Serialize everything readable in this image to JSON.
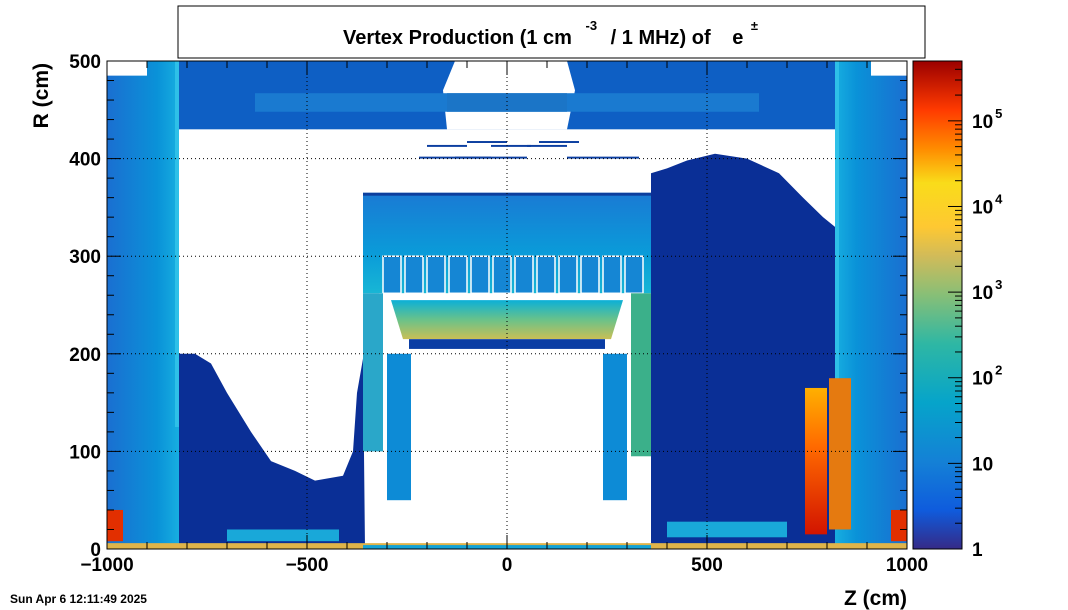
{
  "chart_data": {
    "type": "heatmap",
    "title": {
      "main": "Vertex Production (1 cm",
      "exponent": "-3",
      "rest": "/ 1 MHz) of",
      "particle": "e",
      "particle_sup": "±"
    },
    "xlabel": "Z (cm)",
    "ylabel": "R (cm)",
    "xlim": [
      -1000,
      1000
    ],
    "ylim": [
      0,
      500
    ],
    "x_ticks": [
      "−1000",
      "−500",
      "0",
      "500",
      "1000"
    ],
    "x_tick_values": [
      -1000,
      -500,
      0,
      500,
      1000
    ],
    "y_ticks": [
      "0",
      "100",
      "200",
      "300",
      "400",
      "500"
    ],
    "y_tick_values": [
      0,
      100,
      200,
      300,
      400,
      500
    ],
    "grid": true,
    "z_scale": "log",
    "zlim": [
      1,
      500000
    ],
    "colorbar_labels": [
      {
        "base": "1",
        "exp": "",
        "value": 1
      },
      {
        "base": "10",
        "exp": "",
        "value": 10
      },
      {
        "base": "10",
        "exp": "2",
        "value": 100
      },
      {
        "base": "10",
        "exp": "3",
        "value": 1000
      },
      {
        "base": "10",
        "exp": "4",
        "value": 10000
      },
      {
        "base": "10",
        "exp": "5",
        "value": 100000
      }
    ],
    "colormap": "kBird",
    "regions": [
      {
        "name": "forward-shield-left",
        "z": [
          -1000,
          -820
        ],
        "r": [
          0,
          500
        ],
        "level": 2.1
      },
      {
        "name": "forward-shield-right",
        "z": [
          820,
          1000
        ],
        "r": [
          0,
          500
        ],
        "level": 2.1
      },
      {
        "name": "outer-top-band",
        "z": [
          -820,
          820
        ],
        "r": [
          430,
          500
        ],
        "level": 1.3
      },
      {
        "name": "cavern-left",
        "z": [
          -820,
          -360
        ],
        "r": [
          0,
          200
        ],
        "level": 0.6
      },
      {
        "name": "cavern-right",
        "z": [
          360,
          820
        ],
        "r": [
          0,
          400
        ],
        "level": 0.3
      },
      {
        "name": "calorimeter-barrel",
        "z": [
          -370,
          370
        ],
        "r": [
          260,
          365
        ],
        "level": 1.8
      },
      {
        "name": "barrel-core",
        "z": [
          -240,
          240
        ],
        "r": [
          50,
          250
        ],
        "level": 0
      },
      {
        "name": "endcap-hot-right",
        "z": [
          740,
          800
        ],
        "r": [
          15,
          165
        ],
        "level": 5.0
      },
      {
        "name": "beamline",
        "z": [
          -1000,
          1000
        ],
        "r": [
          0,
          6
        ],
        "level": 4.2
      }
    ]
  },
  "timestamp": "Sun Apr  6 12:11:49 2025"
}
